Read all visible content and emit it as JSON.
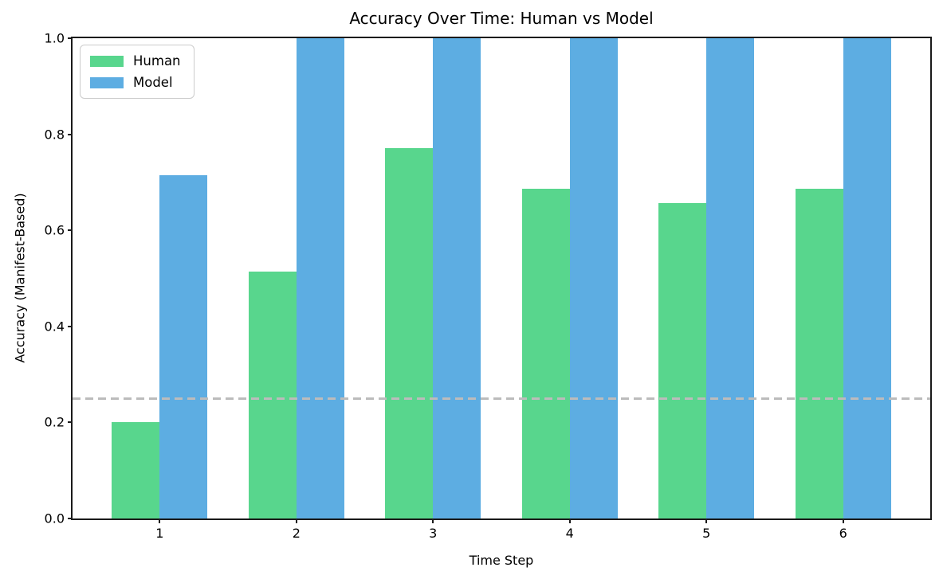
{
  "figure": {
    "background": "#ffffff",
    "spine_color": "#1a1a1a"
  },
  "chart_data": {
    "type": "bar",
    "title": "Accuracy Over Time: Human vs Model",
    "xlabel": "Time Step",
    "ylabel": "Accuracy (Manifest-Based)",
    "categories": [
      "1",
      "2",
      "3",
      "4",
      "5",
      "6"
    ],
    "x": [
      1,
      2,
      3,
      4,
      5,
      6
    ],
    "series": [
      {
        "name": "Human",
        "color": "#58d68d",
        "values": [
          0.2,
          0.514,
          0.771,
          0.686,
          0.657,
          0.686
        ]
      },
      {
        "name": "Model",
        "color": "#5dade2",
        "values": [
          0.714,
          1.0,
          1.0,
          1.0,
          1.0,
          1.0
        ]
      }
    ],
    "bar_width": 0.35,
    "xlim": [
      0.3625,
      6.6375
    ],
    "ylim": [
      0.0,
      1.0
    ],
    "yticks": [
      0.0,
      0.2,
      0.4,
      0.6,
      0.8,
      1.0
    ],
    "ytick_labels": [
      "0.0",
      "0.2",
      "0.4",
      "0.6",
      "0.8",
      "1.0"
    ],
    "reference_line": {
      "y": 0.25,
      "style": "dashed",
      "color": "#bcbcbc"
    },
    "legend": {
      "position": "upper-left",
      "entries": [
        "Human",
        "Model"
      ]
    },
    "grid": false
  }
}
